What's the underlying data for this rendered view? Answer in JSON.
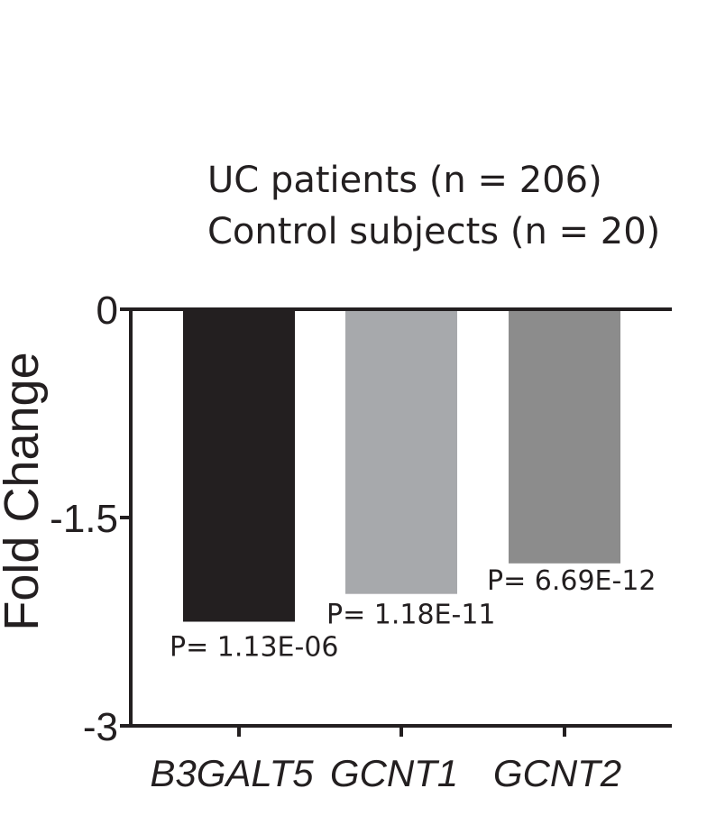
{
  "chart_data": {
    "type": "bar",
    "title": "",
    "legend": [
      "UC patients (n = 206)",
      "Control subjects (n = 20)"
    ],
    "ylabel": "Fold Change",
    "xlabel": "",
    "ylim": [
      -3,
      0
    ],
    "yticks": [
      0,
      -1.5,
      -3
    ],
    "ytick_labels": [
      "0",
      "-1.5",
      "-3"
    ],
    "categories": [
      "B3GALT5",
      "GCNT1",
      "GCNT2"
    ],
    "values": [
      -2.25,
      -2.05,
      -1.83
    ],
    "bar_colors": [
      "#231f20",
      "#a7a9ac",
      "#8c8c8c"
    ],
    "p_values": [
      "P= 1.13E-06",
      "P= 1.18E-11",
      "P= 6.69E-12"
    ]
  }
}
